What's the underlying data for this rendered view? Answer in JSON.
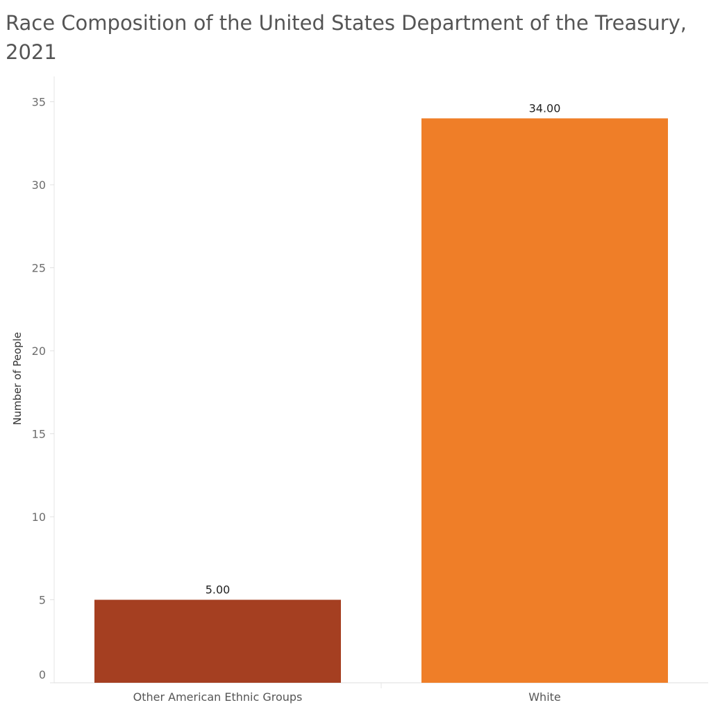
{
  "chart_data": {
    "type": "bar",
    "title": "Race Composition of the United States Department of the Treasury, 2021",
    "xlabel": "",
    "ylabel": "Number of People",
    "categories": [
      "Other American Ethnic Groups",
      "White"
    ],
    "values": [
      5,
      34
    ],
    "value_labels": [
      "5.00",
      "34.00"
    ],
    "colors": [
      "#a53f21",
      "#ef7e28"
    ],
    "ylim": [
      0,
      35
    ],
    "yticks": [
      0,
      5,
      10,
      15,
      20,
      25,
      30,
      35
    ],
    "grid": false,
    "legend": "none"
  }
}
